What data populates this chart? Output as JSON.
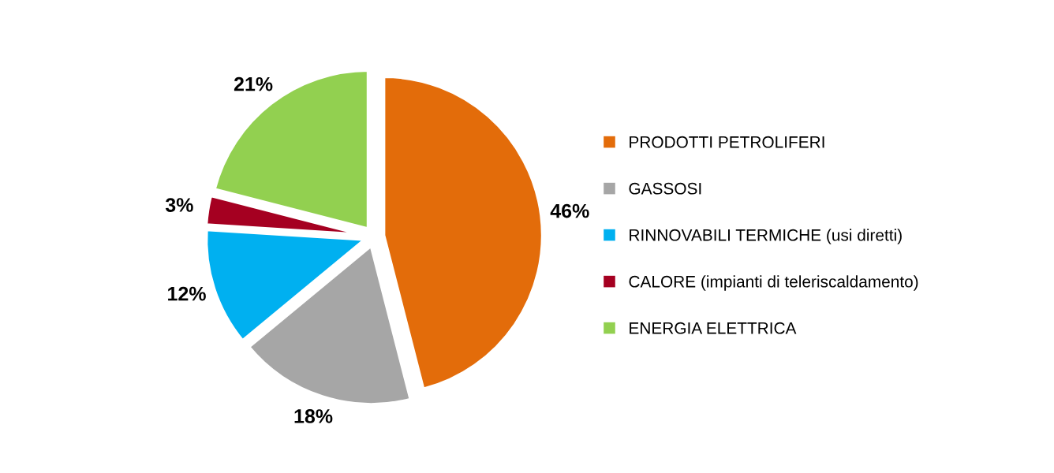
{
  "chart_data": {
    "type": "pie",
    "categories": [
      "PRODOTTI PETROLIFERI",
      "GASSOSI",
      "RINNOVABILI TERMICHE (usi diretti)",
      "CALORE (impianti di teleriscaldamento)",
      "ENERGIA ELETTRICA"
    ],
    "values": [
      46,
      18,
      12,
      3,
      21
    ],
    "value_labels": [
      "46%",
      "18%",
      "12%",
      "3%",
      "21%"
    ],
    "colors": [
      "#e36c0a",
      "#a6a6a6",
      "#00b0f0",
      "#a50021",
      "#92d050"
    ],
    "legend": "right"
  }
}
